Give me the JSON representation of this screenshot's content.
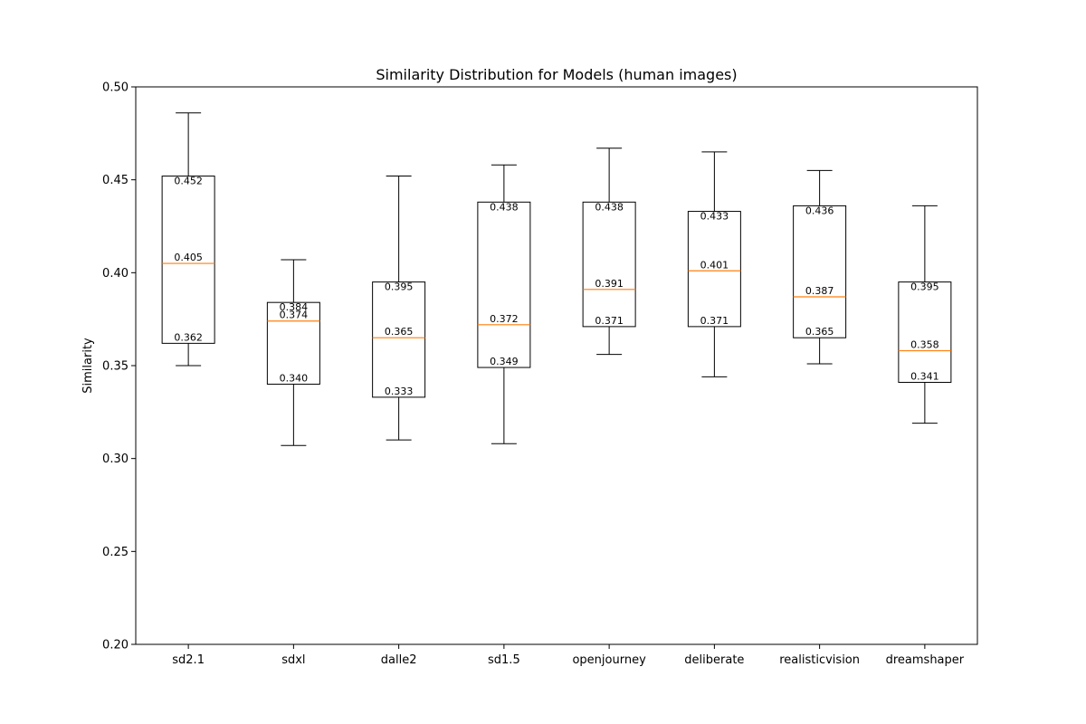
{
  "chart_data": {
    "type": "box",
    "title": "Similarity Distribution for Models (human images)",
    "xlabel": "",
    "ylabel": "Similarity",
    "ylim": [
      0.2,
      0.5
    ],
    "yticks": [
      "0.20",
      "0.25",
      "0.30",
      "0.35",
      "0.40",
      "0.45",
      "0.50"
    ],
    "grid": false,
    "colors": {
      "box": "#000000",
      "median": "#ff7f0e"
    },
    "categories": [
      "sd2.1",
      "sdxl",
      "dalle2",
      "sd1.5",
      "openjourney",
      "deliberate",
      "realisticvision",
      "dreamshaper"
    ],
    "boxes": [
      {
        "name": "sd2.1",
        "whisker_low": 0.35,
        "q1": 0.362,
        "median": 0.405,
        "q3": 0.452,
        "whisker_high": 0.486,
        "labels": {
          "q1": "0.362",
          "median": "0.405",
          "q3": "0.452"
        }
      },
      {
        "name": "sdxl",
        "whisker_low": 0.307,
        "q1": 0.34,
        "median": 0.374,
        "q3": 0.384,
        "whisker_high": 0.407,
        "labels": {
          "q1": "0.340",
          "median": "0.374",
          "q3": "0.384"
        }
      },
      {
        "name": "dalle2",
        "whisker_low": 0.31,
        "q1": 0.333,
        "median": 0.365,
        "q3": 0.395,
        "whisker_high": 0.452,
        "labels": {
          "q1": "0.333",
          "median": "0.365",
          "q3": "0.395"
        }
      },
      {
        "name": "sd1.5",
        "whisker_low": 0.308,
        "q1": 0.349,
        "median": 0.372,
        "q3": 0.438,
        "whisker_high": 0.458,
        "labels": {
          "q1": "0.349",
          "median": "0.372",
          "q3": "0.438"
        }
      },
      {
        "name": "openjourney",
        "whisker_low": 0.356,
        "q1": 0.371,
        "median": 0.391,
        "q3": 0.438,
        "whisker_high": 0.467,
        "labels": {
          "q1": "0.371",
          "median": "0.391",
          "q3": "0.438"
        }
      },
      {
        "name": "deliberate",
        "whisker_low": 0.344,
        "q1": 0.371,
        "median": 0.401,
        "q3": 0.433,
        "whisker_high": 0.465,
        "labels": {
          "q1": "0.371",
          "median": "0.401",
          "q3": "0.433"
        }
      },
      {
        "name": "realisticvision",
        "whisker_low": 0.351,
        "q1": 0.365,
        "median": 0.387,
        "q3": 0.436,
        "whisker_high": 0.455,
        "labels": {
          "q1": "0.365",
          "median": "0.387",
          "q3": "0.436"
        }
      },
      {
        "name": "dreamshaper",
        "whisker_low": 0.319,
        "q1": 0.341,
        "median": 0.358,
        "q3": 0.395,
        "whisker_high": 0.436,
        "labels": {
          "q1": "0.341",
          "median": "0.358",
          "q3": "0.395"
        }
      }
    ]
  }
}
